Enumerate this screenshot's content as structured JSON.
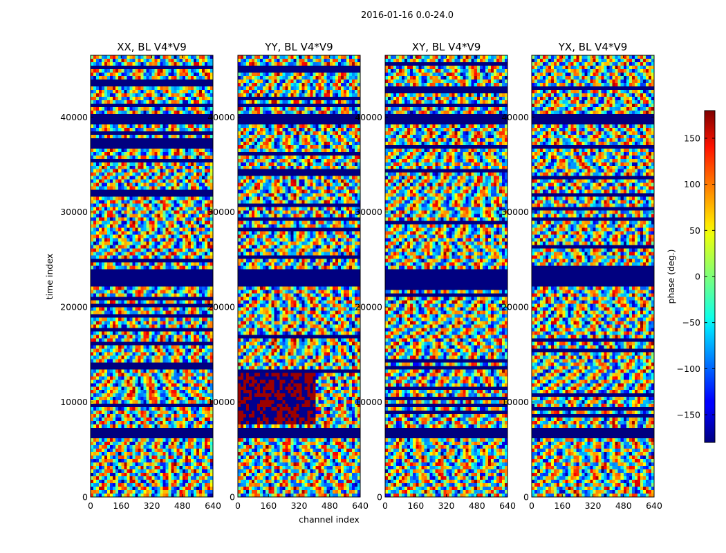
{
  "chart_data": {
    "type": "heatmap",
    "suptitle": "2016-01-16 0.0-24.0",
    "xlabel": "channel index",
    "ylabel": "time index",
    "x_ticks": [
      "0",
      "160",
      "320",
      "480",
      "640"
    ],
    "y_ticks": [
      "0",
      "10000",
      "20000",
      "30000",
      "40000"
    ],
    "xlim": [
      0,
      640
    ],
    "ylim": [
      0,
      46500
    ],
    "colormap": "jet",
    "panels": [
      {
        "title": "XX, BL V4*V9",
        "pol": "XX"
      },
      {
        "title": "YY, BL V4*V9",
        "pol": "YY"
      },
      {
        "title": "XY, BL V4*V9",
        "pol": "XY"
      },
      {
        "title": "YX, BL V4*V9",
        "pol": "YX"
      }
    ],
    "colorbar": {
      "label": "phase (deg.)",
      "vmin": -180,
      "vmax": 180,
      "ticks": [
        "150",
        "100",
        "50",
        "0",
        "−50",
        "−100",
        "−150"
      ],
      "tick_values": [
        150,
        100,
        50,
        0,
        -50,
        -100,
        -150
      ]
    },
    "blank_time_bands": [
      {
        "from": 6100,
        "to": 7100
      },
      {
        "from": 22100,
        "to": 24100
      },
      {
        "from": 39300,
        "to": 40300
      }
    ]
  }
}
